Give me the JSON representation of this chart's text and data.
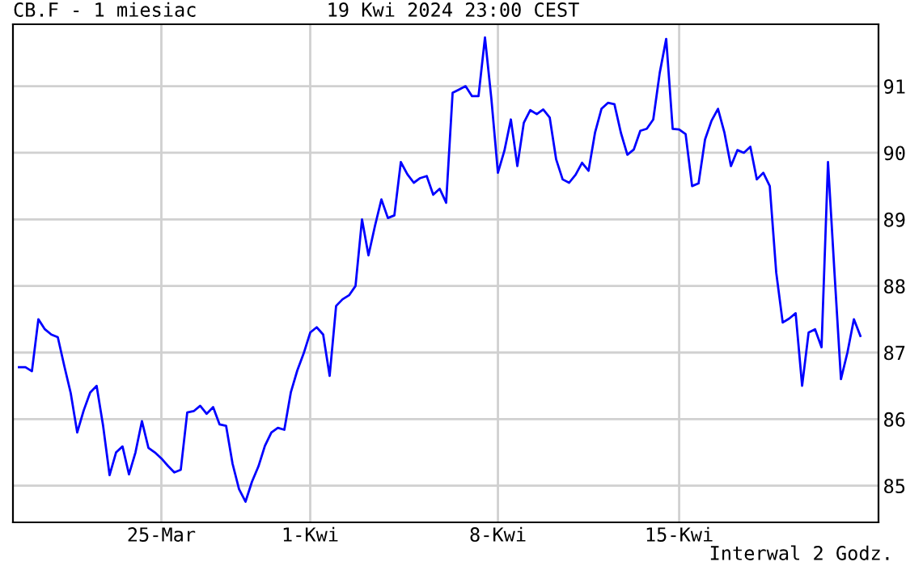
{
  "chart_data": {
    "type": "line",
    "title": "CB.F - 1 miesiac",
    "subtitle": "19 Kwi 2024 23:00 CEST",
    "annotations": [
      "Interwal 2 Godz."
    ],
    "categories": [
      null,
      null,
      null,
      null,
      null,
      null,
      null,
      null,
      null,
      null,
      null,
      null,
      null,
      null,
      null,
      null,
      null,
      null,
      null,
      null,
      null,
      null,
      "25-Mar",
      null,
      null,
      null,
      null,
      null,
      null,
      null,
      null,
      null,
      null,
      null,
      null,
      null,
      null,
      null,
      null,
      null,
      null,
      null,
      null,
      null,
      null,
      "1-Kwi",
      null,
      null,
      null,
      null,
      null,
      null,
      null,
      null,
      null,
      null,
      null,
      null,
      null,
      null,
      null,
      null,
      null,
      null,
      null,
      null,
      null,
      null,
      null,
      null,
      null,
      null,
      null,
      null,
      "8-Kwi",
      null,
      null,
      null,
      null,
      null,
      null,
      null,
      null,
      null,
      null,
      null,
      null,
      null,
      null,
      null,
      null,
      null,
      null,
      null,
      null,
      null,
      null,
      null,
      null,
      null,
      null,
      null,
      "15-Kwi",
      null,
      null,
      null,
      null,
      null,
      null,
      null,
      null,
      null,
      null,
      null,
      null,
      null,
      null,
      null,
      null,
      null,
      null,
      null,
      null,
      null,
      null,
      null,
      null,
      null,
      null,
      null,
      null
    ],
    "ylim": [
      84.45,
      91.93
    ],
    "yticks": [
      85,
      86,
      87,
      88,
      89,
      90,
      91
    ],
    "grid": true,
    "series": [
      {
        "color": "#0000ff",
        "values": [
          86.78,
          86.78,
          86.72,
          87.5,
          87.35,
          87.27,
          87.23,
          86.8,
          86.39,
          85.8,
          86.13,
          86.4,
          86.5,
          85.9,
          85.16,
          85.5,
          85.59,
          85.17,
          85.5,
          85.97,
          85.57,
          85.5,
          85.41,
          85.3,
          85.2,
          85.24,
          86.1,
          86.12,
          86.2,
          86.08,
          86.18,
          85.92,
          85.9,
          85.33,
          84.95,
          84.76,
          85.06,
          85.29,
          85.6,
          85.8,
          85.87,
          85.84,
          86.4,
          86.73,
          86.99,
          87.3,
          87.38,
          87.27,
          86.65,
          87.7,
          87.8,
          87.86,
          88.0,
          89.0,
          88.46,
          88.9,
          89.3,
          89.02,
          89.06,
          89.86,
          89.68,
          89.55,
          89.62,
          89.65,
          89.37,
          89.46,
          89.25,
          90.9,
          90.95,
          91.0,
          90.85,
          90.85,
          91.73,
          90.8,
          89.7,
          90.03,
          90.5,
          89.8,
          90.45,
          90.64,
          90.58,
          90.65,
          90.53,
          89.9,
          89.6,
          89.55,
          89.67,
          89.85,
          89.73,
          90.3,
          90.66,
          90.75,
          90.73,
          90.3,
          89.97,
          90.05,
          90.33,
          90.36,
          90.5,
          91.2,
          91.71,
          90.36,
          90.35,
          90.28,
          89.5,
          89.54,
          90.2,
          90.48,
          90.66,
          90.3,
          89.8,
          90.04,
          90.0,
          90.09,
          89.6,
          89.7,
          89.5,
          88.2,
          87.45,
          87.51,
          87.59,
          86.5,
          87.3,
          87.35,
          87.08,
          89.86,
          88.2,
          86.6,
          87.0,
          87.5,
          87.25
        ]
      }
    ]
  }
}
